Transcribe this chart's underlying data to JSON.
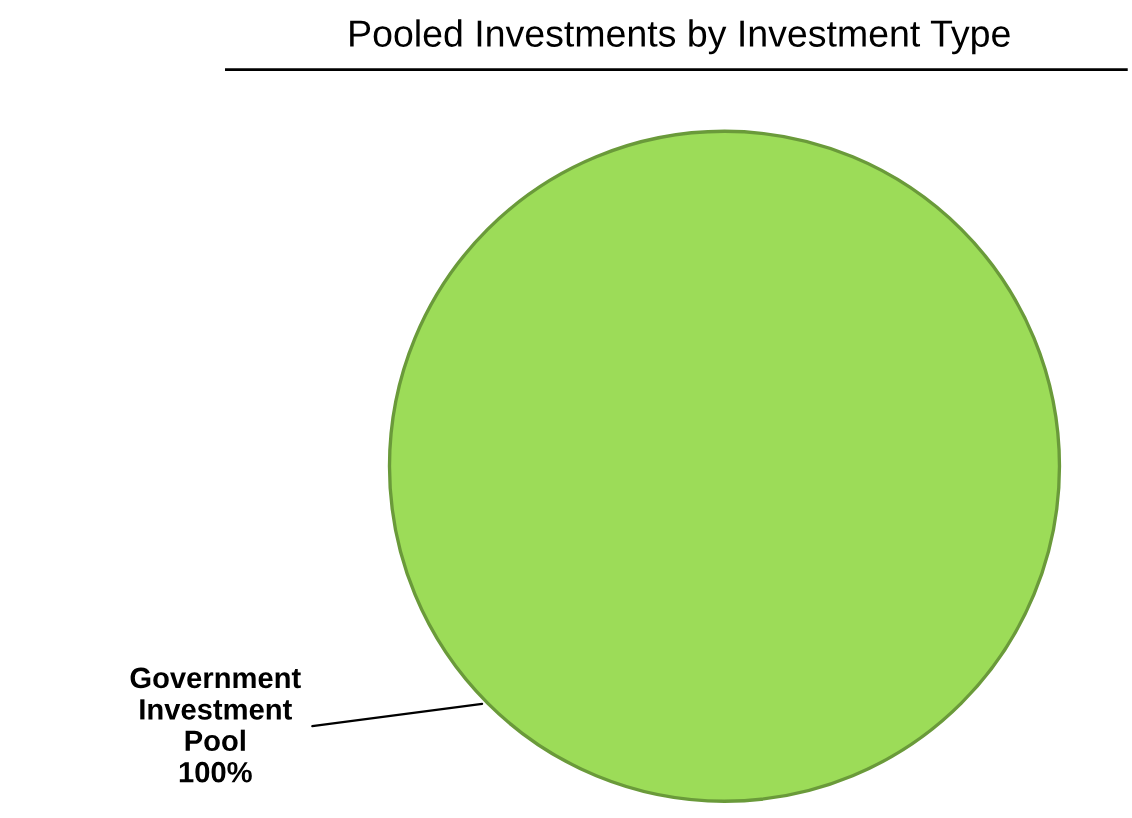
{
  "chart_data": {
    "type": "pie",
    "title": "Pooled Investments by Investment Type",
    "categories": [
      "Government Investment Pool"
    ],
    "values": [
      100
    ],
    "value_labels": [
      "100%"
    ],
    "colors": [
      "#9cdc58"
    ],
    "legend": false
  }
}
